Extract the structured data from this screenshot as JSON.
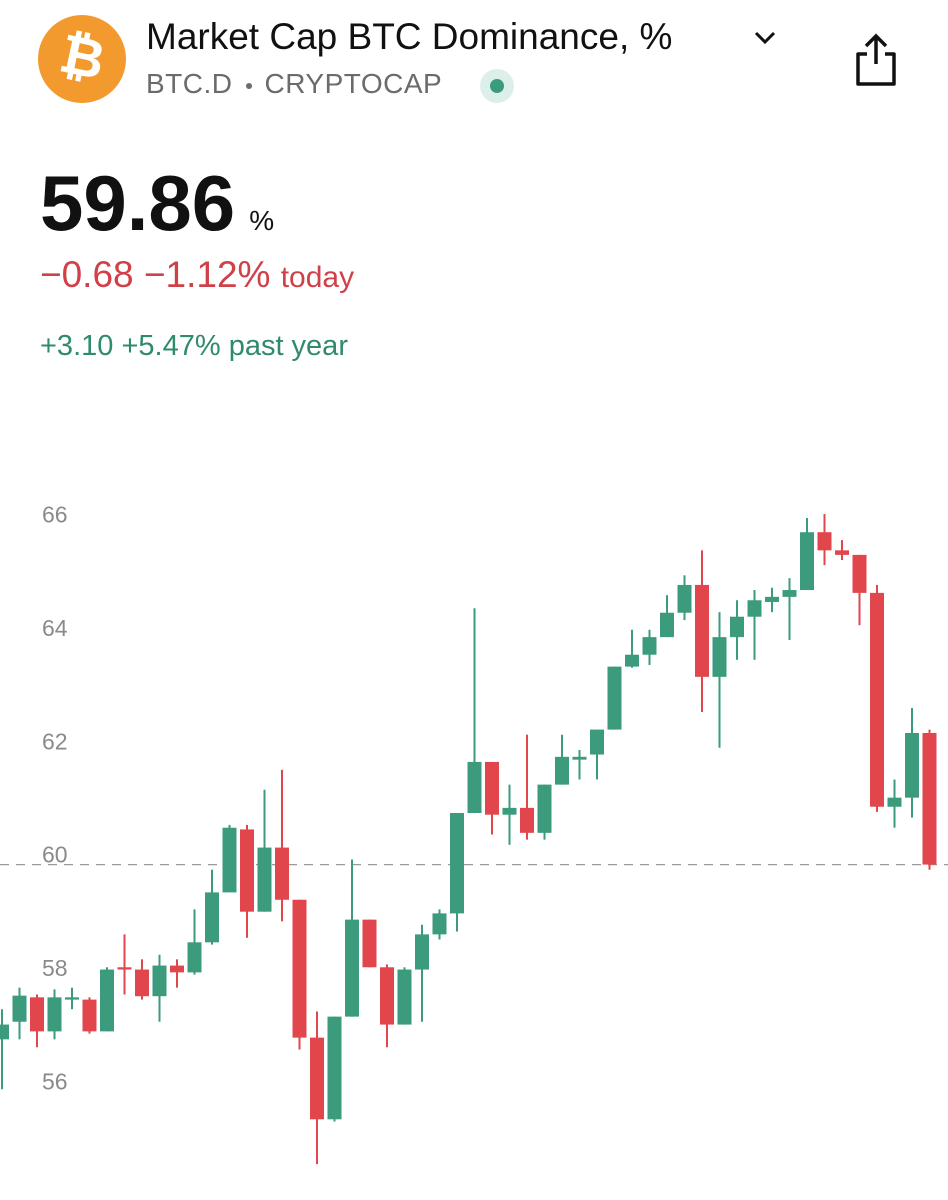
{
  "header": {
    "logo": "₿",
    "title": "Market Cap BTC Dominance, %",
    "symbol": "BTC.D",
    "exchange": "CRYPTOCAP",
    "price": "59.86",
    "unit": "%",
    "change": "−0.68",
    "change_pct": "−1.12%",
    "change_period": "today",
    "year_change": "+3.10",
    "year_change_pct": "+5.47%",
    "year_period": "past year"
  },
  "chart_data": {
    "type": "candlestick",
    "up_color": "#3b9b7c",
    "down_color": "#e1464d",
    "ylim": [
      54.3,
      66.64
    ],
    "yticks": [
      56,
      58,
      60,
      62,
      64,
      66
    ],
    "last_price_line": true,
    "open": [
      56.78,
      57.09,
      57.52,
      56.92,
      57.48,
      57.48,
      56.92,
      58.05,
      58.01,
      57.54,
      58.08,
      57.96,
      58.49,
      59.37,
      60.48,
      59.03,
      60.16,
      59.24,
      56.81,
      55.37,
      57.18,
      58.89,
      58.05,
      57.04,
      58.01,
      58.63,
      59.0,
      60.77,
      61.67,
      60.74,
      60.86,
      60.42,
      61.27,
      61.71,
      61.8,
      62.24,
      63.35,
      63.56,
      63.87,
      64.3,
      64.79,
      63.17,
      63.87,
      64.23,
      64.49,
      64.58,
      64.7,
      65.72,
      65.4,
      65.32,
      64.65,
      60.88,
      61.04,
      62.18
    ],
    "high": [
      57.31,
      57.69,
      57.57,
      57.66,
      57.69,
      57.52,
      58.05,
      58.63,
      58.19,
      58.27,
      58.19,
      59.07,
      59.77,
      60.56,
      60.56,
      61.18,
      61.53,
      59.24,
      57.27,
      57.18,
      59.95,
      58.89,
      58.1,
      58.05,
      58.8,
      59.07,
      60.77,
      64.38,
      61.67,
      61.27,
      62.15,
      61.27,
      62.15,
      61.88,
      62.24,
      63.35,
      64.0,
      64.0,
      64.61,
      64.96,
      65.4,
      64.31,
      64.52,
      64.7,
      64.74,
      64.91,
      65.97,
      66.04,
      65.58,
      65.32,
      64.79,
      61.36,
      62.62,
      62.24
    ],
    "low": [
      55.9,
      56.78,
      56.64,
      56.78,
      57.31,
      56.88,
      56.92,
      57.57,
      57.48,
      57.09,
      57.69,
      57.92,
      58.45,
      59.37,
      58.57,
      59.03,
      58.86,
      56.6,
      54.58,
      55.33,
      57.18,
      58.05,
      56.64,
      57.04,
      57.09,
      58.54,
      58.68,
      60.77,
      60.39,
      60.21,
      60.3,
      60.3,
      61.27,
      61.36,
      61.36,
      62.24,
      63.33,
      63.38,
      63.87,
      64.17,
      62.55,
      61.92,
      63.47,
      63.47,
      64.31,
      63.82,
      64.7,
      65.14,
      65.23,
      64.08,
      60.79,
      60.51,
      60.69,
      59.77
    ],
    "close": [
      57.04,
      57.55,
      56.92,
      57.52,
      57.52,
      56.92,
      58.01,
      58.01,
      57.54,
      58.08,
      57.96,
      58.49,
      59.37,
      60.51,
      59.03,
      60.16,
      59.24,
      56.81,
      55.37,
      57.18,
      58.89,
      58.05,
      57.04,
      58.01,
      58.63,
      59.0,
      60.77,
      61.67,
      60.74,
      60.86,
      60.42,
      61.27,
      61.76,
      61.76,
      62.24,
      63.35,
      63.56,
      63.87,
      64.3,
      64.79,
      63.17,
      63.87,
      64.23,
      64.52,
      64.58,
      64.7,
      65.72,
      65.4,
      65.32,
      64.65,
      60.88,
      61.04,
      62.18,
      59.86
    ]
  }
}
